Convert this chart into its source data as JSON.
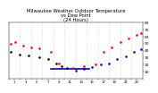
{
  "title": "Milwaukee Weather Outdoor Temperature\nvs Dew Point\n(24 Hours)",
  "title_fontsize": 3.8,
  "title_color": "#000000",
  "background_color": "#ffffff",
  "grid_color": "#bbbbbb",
  "xlim": [
    0,
    24
  ],
  "ylim": [
    0,
    80
  ],
  "yticks": [
    10,
    20,
    30,
    40,
    50,
    60,
    70,
    80
  ],
  "ytick_labels": [
    "10",
    "20",
    "30",
    "40",
    "50",
    "60",
    "70",
    "80"
  ],
  "temp_x": [
    0.3,
    1.2,
    2.5,
    4.0,
    5.5,
    7.5,
    9.0,
    11.5,
    13.5,
    15.5,
    17.0,
    18.5,
    20.0,
    21.5,
    23.0,
    23.8
  ],
  "temp_y": [
    50,
    52,
    47,
    45,
    43,
    38,
    22,
    15,
    18,
    20,
    38,
    45,
    52,
    58,
    63,
    65
  ],
  "dew_x": [
    0.3,
    2.0,
    3.5,
    5.5,
    7.0,
    8.5,
    9.5,
    10.5,
    12.0,
    13.5,
    15.0,
    16.5,
    18.0,
    19.5,
    21.0,
    22.5,
    23.8
  ],
  "dew_y": [
    38,
    35,
    33,
    30,
    28,
    22,
    18,
    15,
    12,
    14,
    16,
    20,
    22,
    28,
    32,
    38,
    42
  ],
  "line_x": [
    7.5,
    14.5
  ],
  "line_y": [
    14,
    14
  ],
  "temp_color": "#ff0000",
  "dew_color_1": "#000000",
  "dew_color_2": "#0000cc",
  "line_color": "#0000cc",
  "marker_size": 3.5,
  "ylabel_fontsize": 3.2,
  "xlabel_fontsize": 2.8,
  "xtick_step": 2
}
